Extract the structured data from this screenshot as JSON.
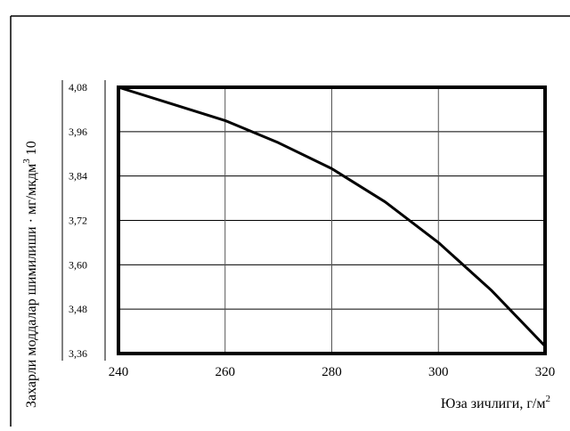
{
  "chart_data": {
    "type": "line",
    "title": "",
    "xlabel": "Юза зичлиги, г/м",
    "xlabel_sup": "2",
    "ylabel": "Захарли моддалар шимилиши   · мг/мкдм",
    "ylabel_sup": "3",
    "ylabel_suffix": " 10",
    "xlim": [
      240,
      320
    ],
    "ylim": [
      3.36,
      4.08
    ],
    "x_ticks": [
      "240",
      "260",
      "280",
      "300",
      "320"
    ],
    "y_ticks": [
      "3,36",
      "3,48",
      "3,60",
      "3,72",
      "3,84",
      "3,96",
      "4,08"
    ],
    "grid": true,
    "series": [
      {
        "x": [
          240,
          250,
          260,
          270,
          280,
          290,
          300,
          310,
          320
        ],
        "y": [
          4.08,
          4.035,
          3.99,
          3.93,
          3.86,
          3.77,
          3.66,
          3.53,
          3.38
        ]
      }
    ]
  }
}
